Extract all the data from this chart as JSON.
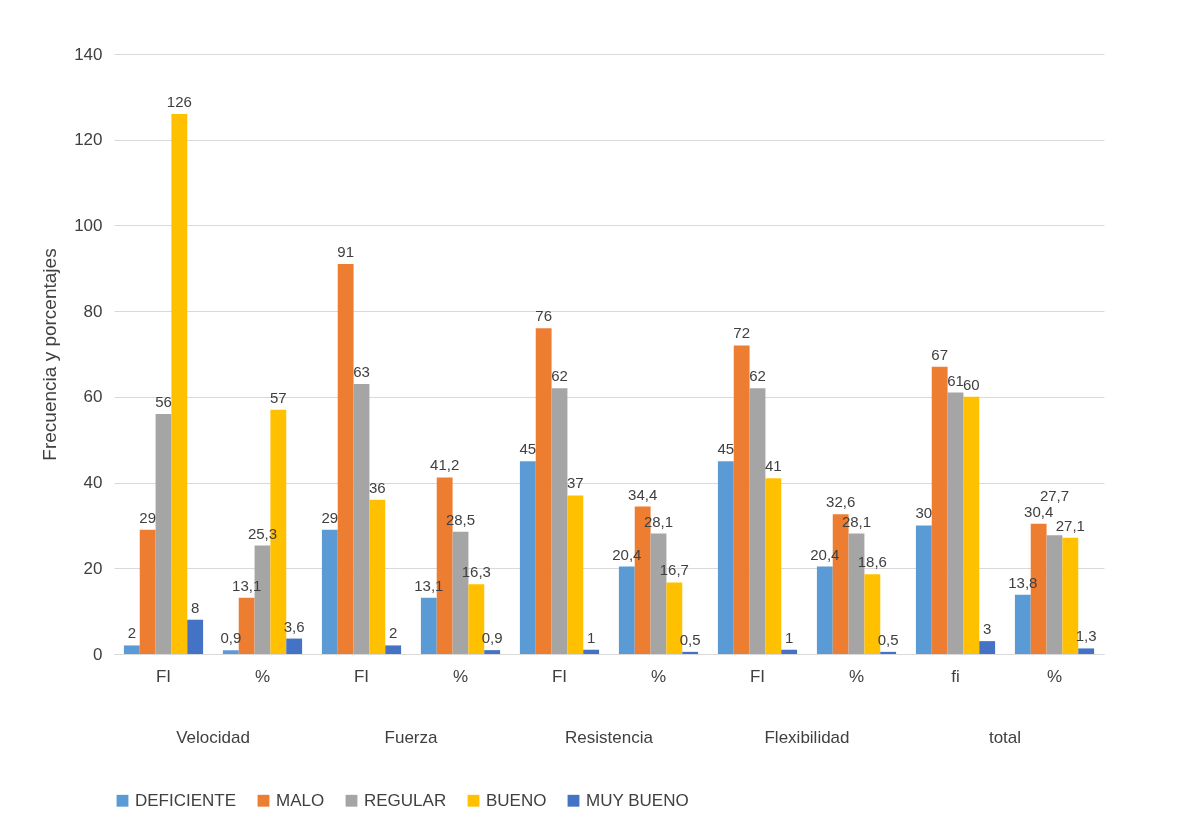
{
  "chart_data": {
    "type": "bar",
    "ylabel": "Frecuencia y porcentajes",
    "categories": [
      "FI",
      "%",
      "FI",
      "%",
      "FI",
      "%",
      "FI",
      "%",
      "fi",
      "%"
    ],
    "annotations": [
      "Velocidad",
      "Fuerza",
      "Resistencia",
      "Flexibilidad",
      "total"
    ],
    "series": [
      {
        "name": "DEFICIENTE",
        "color": "#5b9bd5",
        "values": [
          2,
          0.9,
          29,
          13.1,
          45,
          20.4,
          45,
          20.4,
          30,
          13.8
        ],
        "value_labels": [
          "2",
          "0,9",
          "29",
          "13,1",
          "45",
          "20,4",
          "45",
          "20,4",
          "30",
          "13,8"
        ]
      },
      {
        "name": "MALO",
        "color": "#ed7d31",
        "values": [
          29,
          13.1,
          91,
          41.2,
          76,
          34.4,
          72,
          32.6,
          67,
          30.4
        ],
        "value_labels": [
          "29",
          "13,1",
          "91",
          "41,2",
          "76",
          "34,4",
          "72",
          "32,6",
          "67",
          "30,4"
        ]
      },
      {
        "name": "REGULAR",
        "color": "#a5a5a5",
        "values": [
          56,
          25.3,
          63,
          28.5,
          62,
          28.1,
          62,
          28.1,
          61,
          27.7
        ],
        "value_labels": [
          "56",
          "25,3",
          "63",
          "28,5",
          "62",
          "28,1",
          "62",
          "28,1",
          "61",
          "27,7"
        ]
      },
      {
        "name": "BUENO",
        "color": "#ffc000",
        "values": [
          126,
          57,
          36,
          16.3,
          37,
          16.7,
          41,
          18.6,
          60,
          27.1
        ],
        "value_labels": [
          "126",
          "57",
          "36",
          "16,3",
          "37",
          "16,7",
          "41",
          "18,6",
          "60",
          "27,1"
        ]
      },
      {
        "name": "MUY BUENO",
        "color": "#4472c4",
        "values": [
          8,
          3.6,
          2,
          0.9,
          1,
          0.5,
          1,
          0.5,
          3,
          1.3
        ],
        "value_labels": [
          "8",
          "3,6",
          "2",
          "0,9",
          "1",
          "0,5",
          "1",
          "0,5",
          "3",
          "1,3"
        ]
      }
    ],
    "ylim": [
      0,
      140
    ],
    "yticks": [
      0,
      20,
      40,
      60,
      80,
      100,
      120,
      140
    ],
    "grid": "y",
    "legend": "bottom"
  }
}
